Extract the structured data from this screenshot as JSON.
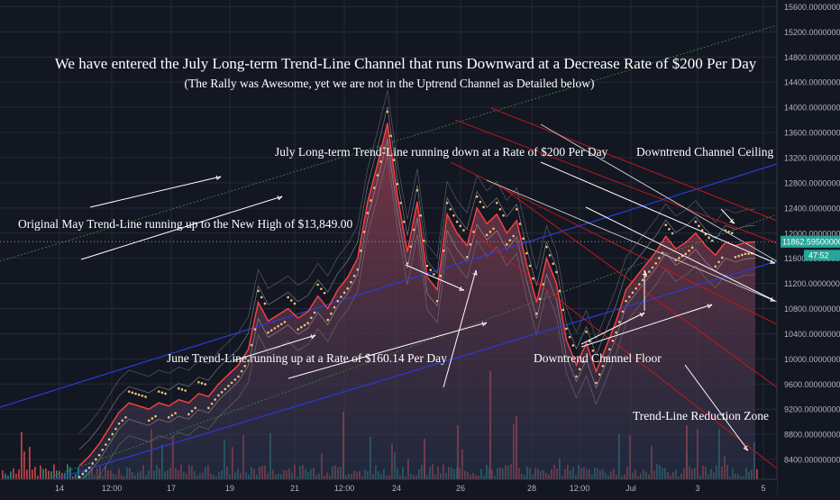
{
  "chart_data": {
    "type": "line",
    "title": "We have entered the July Long-term Trend-Line Channel that runs Downward at a Decrease Rate of $200 Per Day",
    "subtitle": "(The Rally was Awesome, yet we are not in the Uptrend Channel as Detailed below)",
    "xlabel": "",
    "ylabel": "",
    "x_ticks": [
      "14",
      "12:00",
      "17",
      "19",
      "21",
      "12:00",
      "24",
      "26",
      "28",
      "12:00",
      "Jul",
      "3",
      "5"
    ],
    "y_ticks": [
      "8400.00000000",
      "8800.00000000",
      "9200.00000000",
      "9600.00000000",
      "10000.00000000",
      "10400.00000000",
      "10800.00000000",
      "11200.00000000",
      "11600.00000000",
      "12000.00000000",
      "12400.00000000",
      "12800.00000000",
      "13200.00000000",
      "13600.00000000",
      "14000.00000000",
      "14400.00000000",
      "14800.00000000",
      "15200.00000000",
      "15600.00000000"
    ],
    "ylim": [
      8200,
      15650
    ],
    "grid": true,
    "current_price_label": "11862.59500000",
    "current_price": 11862.595,
    "countdown_label": "47:52",
    "series": [
      {
        "values_x": [
          0,
          0.5,
          1,
          1.5,
          2,
          2.5,
          3,
          3.5,
          4,
          4.5,
          5,
          5.5,
          6,
          6.5,
          7,
          7.5,
          8,
          8.5,
          9,
          9.5,
          10,
          10.5,
          11,
          11.5,
          12,
          12.5,
          13,
          13.5,
          14,
          14.5,
          15,
          15.5,
          16,
          16.5,
          17,
          17.5,
          18,
          18.5,
          19,
          19.5,
          20,
          20.5,
          21,
          21.5,
          22,
          22.5,
          23,
          23.5,
          24,
          24.5,
          25,
          25.5,
          26,
          26.5,
          27,
          27.5,
          28,
          28.5,
          29,
          29.5,
          30,
          30.5,
          31,
          31.5,
          32,
          32.5,
          33,
          33.5,
          34
        ],
        "values": [
          8300,
          8450,
          8650,
          8900,
          9150,
          9300,
          9250,
          9200,
          9300,
          9250,
          9350,
          9300,
          9450,
          9400,
          9600,
          9750,
          9900,
          10150,
          10900,
          10600,
          10700,
          10800,
          10650,
          10750,
          11000,
          10800,
          11100,
          11300,
          11600,
          12500,
          13100,
          13750,
          12600,
          11700,
          12500,
          11300,
          11100,
          12300,
          12000,
          11800,
          12400,
          12150,
          12300,
          12000,
          12200,
          11500,
          10900,
          11600,
          11200,
          10300,
          9900,
          10250,
          9800,
          10200,
          10600,
          11100,
          11300,
          11500,
          11700,
          11950,
          11750,
          11850,
          12000,
          11800,
          11650,
          11862,
          11800,
          11850,
          11862
        ]
      }
    ],
    "annotations": [
      "Original May Trend-Line running up to the New High of $13,849.00",
      "July Long-term Trend-Line running down at a Rate of $200 Per Day",
      "Downtrend Channel Ceiling",
      "June Trend-Line running up at a Rate of $160.14 Per Day",
      "Downtrend Channel Floor",
      "Trend-Line Reduction Zone"
    ]
  },
  "colors": {
    "background": "#131722",
    "grid": "#242a36",
    "price_line": "#ff4040",
    "fill_top": "#a04050",
    "fill_bottom": "#2a3550",
    "volume_up": "#26a69a",
    "volume_down": "#ef5350",
    "dots": "#f5c07a",
    "channel_blue": "#2a3bd6",
    "channel_red": "#c01818",
    "trend_green": "#3f7f3f",
    "label_text": "#ffffff",
    "axis_text": "#b2b5be",
    "price_tag": "#26a69a"
  }
}
